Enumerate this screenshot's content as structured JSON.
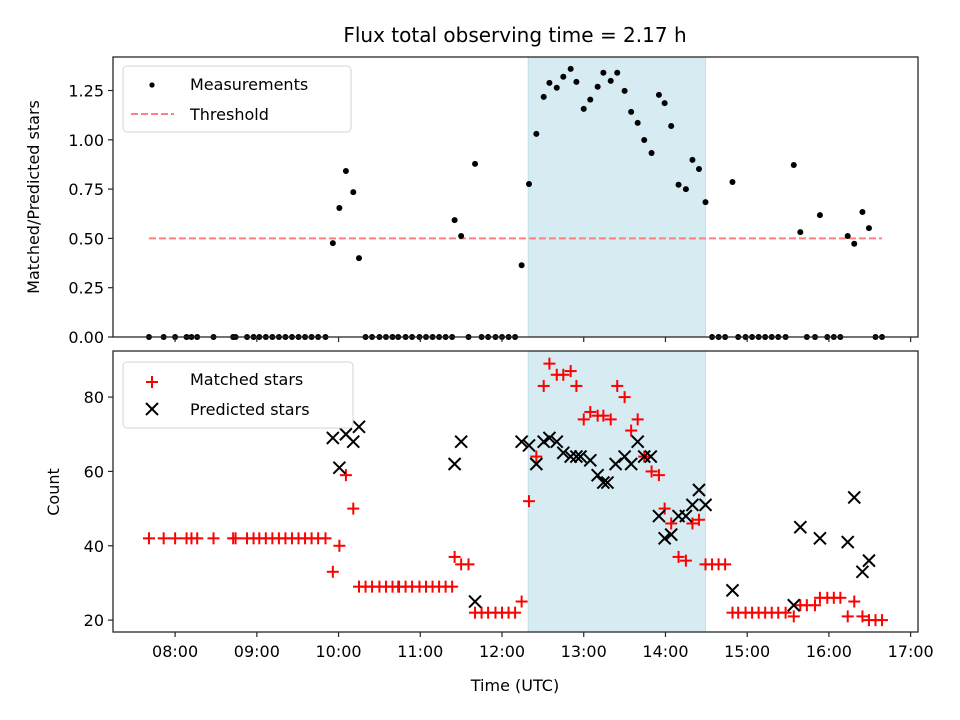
{
  "chart_data": [
    {
      "type": "scatter",
      "title": "Flux total observing time = 2.17 h",
      "xlabel": "",
      "ylabel": "Matched/Predicted stars",
      "xlim": [
        7.24,
        17.09
      ],
      "ylim": [
        0,
        1.42
      ],
      "yticks": [
        0,
        0.25,
        0.5,
        0.75,
        1.0,
        1.25
      ],
      "ytick_labels": [
        "0.00",
        "0.25",
        "0.50",
        "0.75",
        "1.00",
        "1.25"
      ],
      "xticks": [
        8,
        9,
        10,
        11,
        12,
        13,
        14,
        15,
        16,
        17
      ],
      "legend": {
        "placement": "top-left",
        "entries": [
          "Measurements",
          "Threshold"
        ]
      },
      "shaded_interval": {
        "x": [
          12.32,
          14.49
        ],
        "color": "#add8e6"
      },
      "series": [
        {
          "name": "Measurements",
          "color": "#000000",
          "marker": "dot",
          "points": [
            [
              7.68,
              0
            ],
            [
              7.86,
              0
            ],
            [
              8.0,
              0
            ],
            [
              8.14,
              0
            ],
            [
              8.2,
              0
            ],
            [
              8.27,
              0
            ],
            [
              8.47,
              0
            ],
            [
              8.71,
              0
            ],
            [
              8.74,
              0
            ],
            [
              8.88,
              0
            ],
            [
              8.96,
              0
            ],
            [
              9.03,
              0
            ],
            [
              9.11,
              0
            ],
            [
              9.19,
              0
            ],
            [
              9.27,
              0
            ],
            [
              9.35,
              0
            ],
            [
              9.43,
              0
            ],
            [
              9.51,
              0
            ],
            [
              9.59,
              0
            ],
            [
              9.67,
              0
            ],
            [
              9.75,
              0
            ],
            [
              9.84,
              0
            ],
            [
              9.93,
              0.476
            ],
            [
              10.01,
              0.654
            ],
            [
              10.09,
              0.842
            ],
            [
              10.18,
              0.735
            ],
            [
              10.25,
              0.4
            ],
            [
              10.33,
              0
            ],
            [
              10.41,
              0
            ],
            [
              10.5,
              0
            ],
            [
              10.58,
              0
            ],
            [
              10.66,
              0
            ],
            [
              10.73,
              0
            ],
            [
              10.82,
              0
            ],
            [
              10.9,
              0
            ],
            [
              10.99,
              0
            ],
            [
              11.07,
              0
            ],
            [
              11.15,
              0
            ],
            [
              11.23,
              0
            ],
            [
              11.31,
              0
            ],
            [
              11.39,
              0
            ],
            [
              11.42,
              0.593
            ],
            [
              11.5,
              0.512
            ],
            [
              11.67,
              0.878
            ],
            [
              11.59,
              0
            ],
            [
              11.75,
              0
            ],
            [
              11.83,
              0
            ],
            [
              11.92,
              0
            ],
            [
              12.0,
              0
            ],
            [
              12.08,
              0
            ],
            [
              12.16,
              0
            ],
            [
              12.24,
              0.364
            ],
            [
              12.33,
              0.776
            ],
            [
              12.42,
              1.03
            ],
            [
              12.51,
              1.218
            ],
            [
              12.58,
              1.289
            ],
            [
              12.67,
              1.264
            ],
            [
              12.75,
              1.32
            ],
            [
              12.84,
              1.36
            ],
            [
              12.91,
              1.294
            ],
            [
              13.0,
              1.157
            ],
            [
              13.08,
              1.204
            ],
            [
              13.17,
              1.269
            ],
            [
              13.24,
              1.34
            ],
            [
              13.33,
              1.299
            ],
            [
              13.41,
              1.34
            ],
            [
              13.5,
              1.248
            ],
            [
              13.58,
              1.142
            ],
            [
              13.66,
              1.086
            ],
            [
              13.74,
              0.999
            ],
            [
              13.83,
              0.933
            ],
            [
              13.92,
              1.228
            ],
            [
              13.99,
              1.186
            ],
            [
              14.07,
              1.07
            ],
            [
              14.16,
              0.772
            ],
            [
              14.25,
              0.75
            ],
            [
              14.33,
              0.898
            ],
            [
              14.41,
              0.852
            ],
            [
              14.49,
              0.684
            ],
            [
              14.57,
              0
            ],
            [
              14.65,
              0
            ],
            [
              14.73,
              0
            ],
            [
              14.82,
              0.786
            ],
            [
              14.89,
              0
            ],
            [
              14.98,
              0
            ],
            [
              15.06,
              0
            ],
            [
              15.14,
              0
            ],
            [
              15.22,
              0
            ],
            [
              15.3,
              0
            ],
            [
              15.38,
              0
            ],
            [
              15.47,
              0
            ],
            [
              15.57,
              0.872
            ],
            [
              15.65,
              0.532
            ],
            [
              15.73,
              0
            ],
            [
              15.83,
              0
            ],
            [
              15.89,
              0.618
            ],
            [
              15.98,
              0
            ],
            [
              16.06,
              0
            ],
            [
              16.14,
              0
            ],
            [
              16.23,
              0.512
            ],
            [
              16.31,
              0.473
            ],
            [
              16.41,
              0.634
            ],
            [
              16.49,
              0.552
            ],
            [
              16.57,
              0
            ],
            [
              16.65,
              0
            ]
          ]
        },
        {
          "name": "Threshold",
          "color": "#ff7f7f",
          "style": "dashed",
          "x": [
            7.68,
            16.65
          ],
          "y": [
            0.5,
            0.5
          ]
        }
      ]
    },
    {
      "type": "scatter",
      "title": "",
      "xlabel": "Time (UTC)",
      "ylabel": "Count",
      "xlim": [
        7.24,
        17.09
      ],
      "ylim": [
        16.8,
        92.4
      ],
      "yticks": [
        20,
        40,
        60,
        80
      ],
      "ytick_labels": [
        "20",
        "40",
        "60",
        "80"
      ],
      "xticks": [
        8,
        9,
        10,
        11,
        12,
        13,
        14,
        15,
        16,
        17
      ],
      "xtick_labels": [
        "08:00",
        "09:00",
        "10:00",
        "11:00",
        "12:00",
        "13:00",
        "14:00",
        "15:00",
        "16:00",
        "17:00"
      ],
      "legend": {
        "placement": "top-left",
        "entries": [
          "Matched stars",
          "Predicted stars"
        ]
      },
      "shaded_interval": {
        "x": [
          12.32,
          14.49
        ],
        "color": "#add8e6"
      },
      "series": [
        {
          "name": "Matched stars",
          "color": "#ff0000",
          "marker": "plus",
          "points": [
            [
              7.68,
              42
            ],
            [
              7.86,
              42
            ],
            [
              8.0,
              42
            ],
            [
              8.14,
              42
            ],
            [
              8.2,
              42
            ],
            [
              8.27,
              42
            ],
            [
              8.47,
              42
            ],
            [
              8.71,
              42
            ],
            [
              8.74,
              42
            ],
            [
              8.88,
              42
            ],
            [
              8.96,
              42
            ],
            [
              9.03,
              42
            ],
            [
              9.11,
              42
            ],
            [
              9.19,
              42
            ],
            [
              9.27,
              42
            ],
            [
              9.35,
              42
            ],
            [
              9.43,
              42
            ],
            [
              9.51,
              42
            ],
            [
              9.59,
              42
            ],
            [
              9.67,
              42
            ],
            [
              9.75,
              42
            ],
            [
              9.84,
              42
            ],
            [
              9.93,
              33
            ],
            [
              10.01,
              40
            ],
            [
              10.09,
              59
            ],
            [
              10.18,
              50
            ],
            [
              10.25,
              29
            ],
            [
              10.33,
              29
            ],
            [
              10.41,
              29
            ],
            [
              10.5,
              29
            ],
            [
              10.58,
              29
            ],
            [
              10.66,
              29
            ],
            [
              10.73,
              29
            ],
            [
              10.74,
              29
            ],
            [
              10.82,
              29
            ],
            [
              10.9,
              29
            ],
            [
              10.99,
              29
            ],
            [
              11.07,
              29
            ],
            [
              11.15,
              29
            ],
            [
              11.23,
              29
            ],
            [
              11.31,
              29
            ],
            [
              11.39,
              29
            ],
            [
              11.42,
              37
            ],
            [
              11.5,
              35
            ],
            [
              11.59,
              35
            ],
            [
              11.67,
              22
            ],
            [
              11.75,
              22
            ],
            [
              11.83,
              22
            ],
            [
              11.92,
              22
            ],
            [
              12.0,
              22
            ],
            [
              12.08,
              22
            ],
            [
              12.16,
              22
            ],
            [
              12.24,
              25
            ],
            [
              12.33,
              52
            ],
            [
              12.42,
              64
            ],
            [
              12.51,
              83
            ],
            [
              12.58,
              89
            ],
            [
              12.67,
              86
            ],
            [
              12.75,
              86
            ],
            [
              12.84,
              87
            ],
            [
              12.91,
              83
            ],
            [
              13.0,
              74
            ],
            [
              13.08,
              76
            ],
            [
              13.17,
              75
            ],
            [
              13.24,
              75
            ],
            [
              13.33,
              74
            ],
            [
              13.41,
              83
            ],
            [
              13.5,
              80
            ],
            [
              13.58,
              71
            ],
            [
              13.66,
              74
            ],
            [
              13.74,
              64
            ],
            [
              13.83,
              60
            ],
            [
              13.92,
              59
            ],
            [
              13.99,
              50
            ],
            [
              14.07,
              46
            ],
            [
              14.16,
              37
            ],
            [
              14.25,
              36
            ],
            [
              14.33,
              46
            ],
            [
              14.41,
              47
            ],
            [
              14.49,
              35
            ],
            [
              14.57,
              35
            ],
            [
              14.65,
              35
            ],
            [
              14.73,
              35
            ],
            [
              14.82,
              22
            ],
            [
              14.89,
              22
            ],
            [
              14.98,
              22
            ],
            [
              15.06,
              22
            ],
            [
              15.14,
              22
            ],
            [
              15.22,
              22
            ],
            [
              15.3,
              22
            ],
            [
              15.38,
              22
            ],
            [
              15.47,
              22
            ],
            [
              15.57,
              21
            ],
            [
              15.65,
              24
            ],
            [
              15.73,
              24
            ],
            [
              15.83,
              24
            ],
            [
              15.89,
              26
            ],
            [
              15.98,
              26
            ],
            [
              16.06,
              26
            ],
            [
              16.14,
              26
            ],
            [
              16.23,
              21
            ],
            [
              16.31,
              25
            ],
            [
              16.41,
              21
            ],
            [
              16.49,
              20
            ],
            [
              16.57,
              20
            ],
            [
              16.65,
              20
            ]
          ]
        },
        {
          "name": "Predicted stars",
          "color": "#000000",
          "marker": "x",
          "points": [
            [
              9.93,
              69
            ],
            [
              10.01,
              61
            ],
            [
              10.09,
              70
            ],
            [
              10.18,
              68
            ],
            [
              10.25,
              72
            ],
            [
              11.42,
              62
            ],
            [
              11.5,
              68
            ],
            [
              11.67,
              25
            ],
            [
              12.24,
              68
            ],
            [
              12.33,
              67
            ],
            [
              12.42,
              62
            ],
            [
              12.51,
              68
            ],
            [
              12.58,
              69
            ],
            [
              12.67,
              68
            ],
            [
              12.75,
              65
            ],
            [
              12.84,
              64
            ],
            [
              12.91,
              64
            ],
            [
              12.96,
              64
            ],
            [
              13.08,
              63
            ],
            [
              13.17,
              59
            ],
            [
              13.24,
              57
            ],
            [
              13.29,
              57
            ],
            [
              13.39,
              62
            ],
            [
              13.5,
              64
            ],
            [
              13.58,
              62
            ],
            [
              13.66,
              68
            ],
            [
              13.74,
              64
            ],
            [
              13.82,
              64
            ],
            [
              13.92,
              48
            ],
            [
              13.99,
              42
            ],
            [
              14.07,
              43
            ],
            [
              14.16,
              48
            ],
            [
              14.25,
              48
            ],
            [
              14.33,
              51
            ],
            [
              14.41,
              55
            ],
            [
              14.49,
              51
            ],
            [
              14.82,
              28
            ],
            [
              15.57,
              24
            ],
            [
              15.65,
              45
            ],
            [
              15.89,
              42
            ],
            [
              16.23,
              41
            ],
            [
              16.31,
              53
            ],
            [
              16.41,
              33
            ],
            [
              16.49,
              36
            ]
          ]
        }
      ]
    }
  ]
}
